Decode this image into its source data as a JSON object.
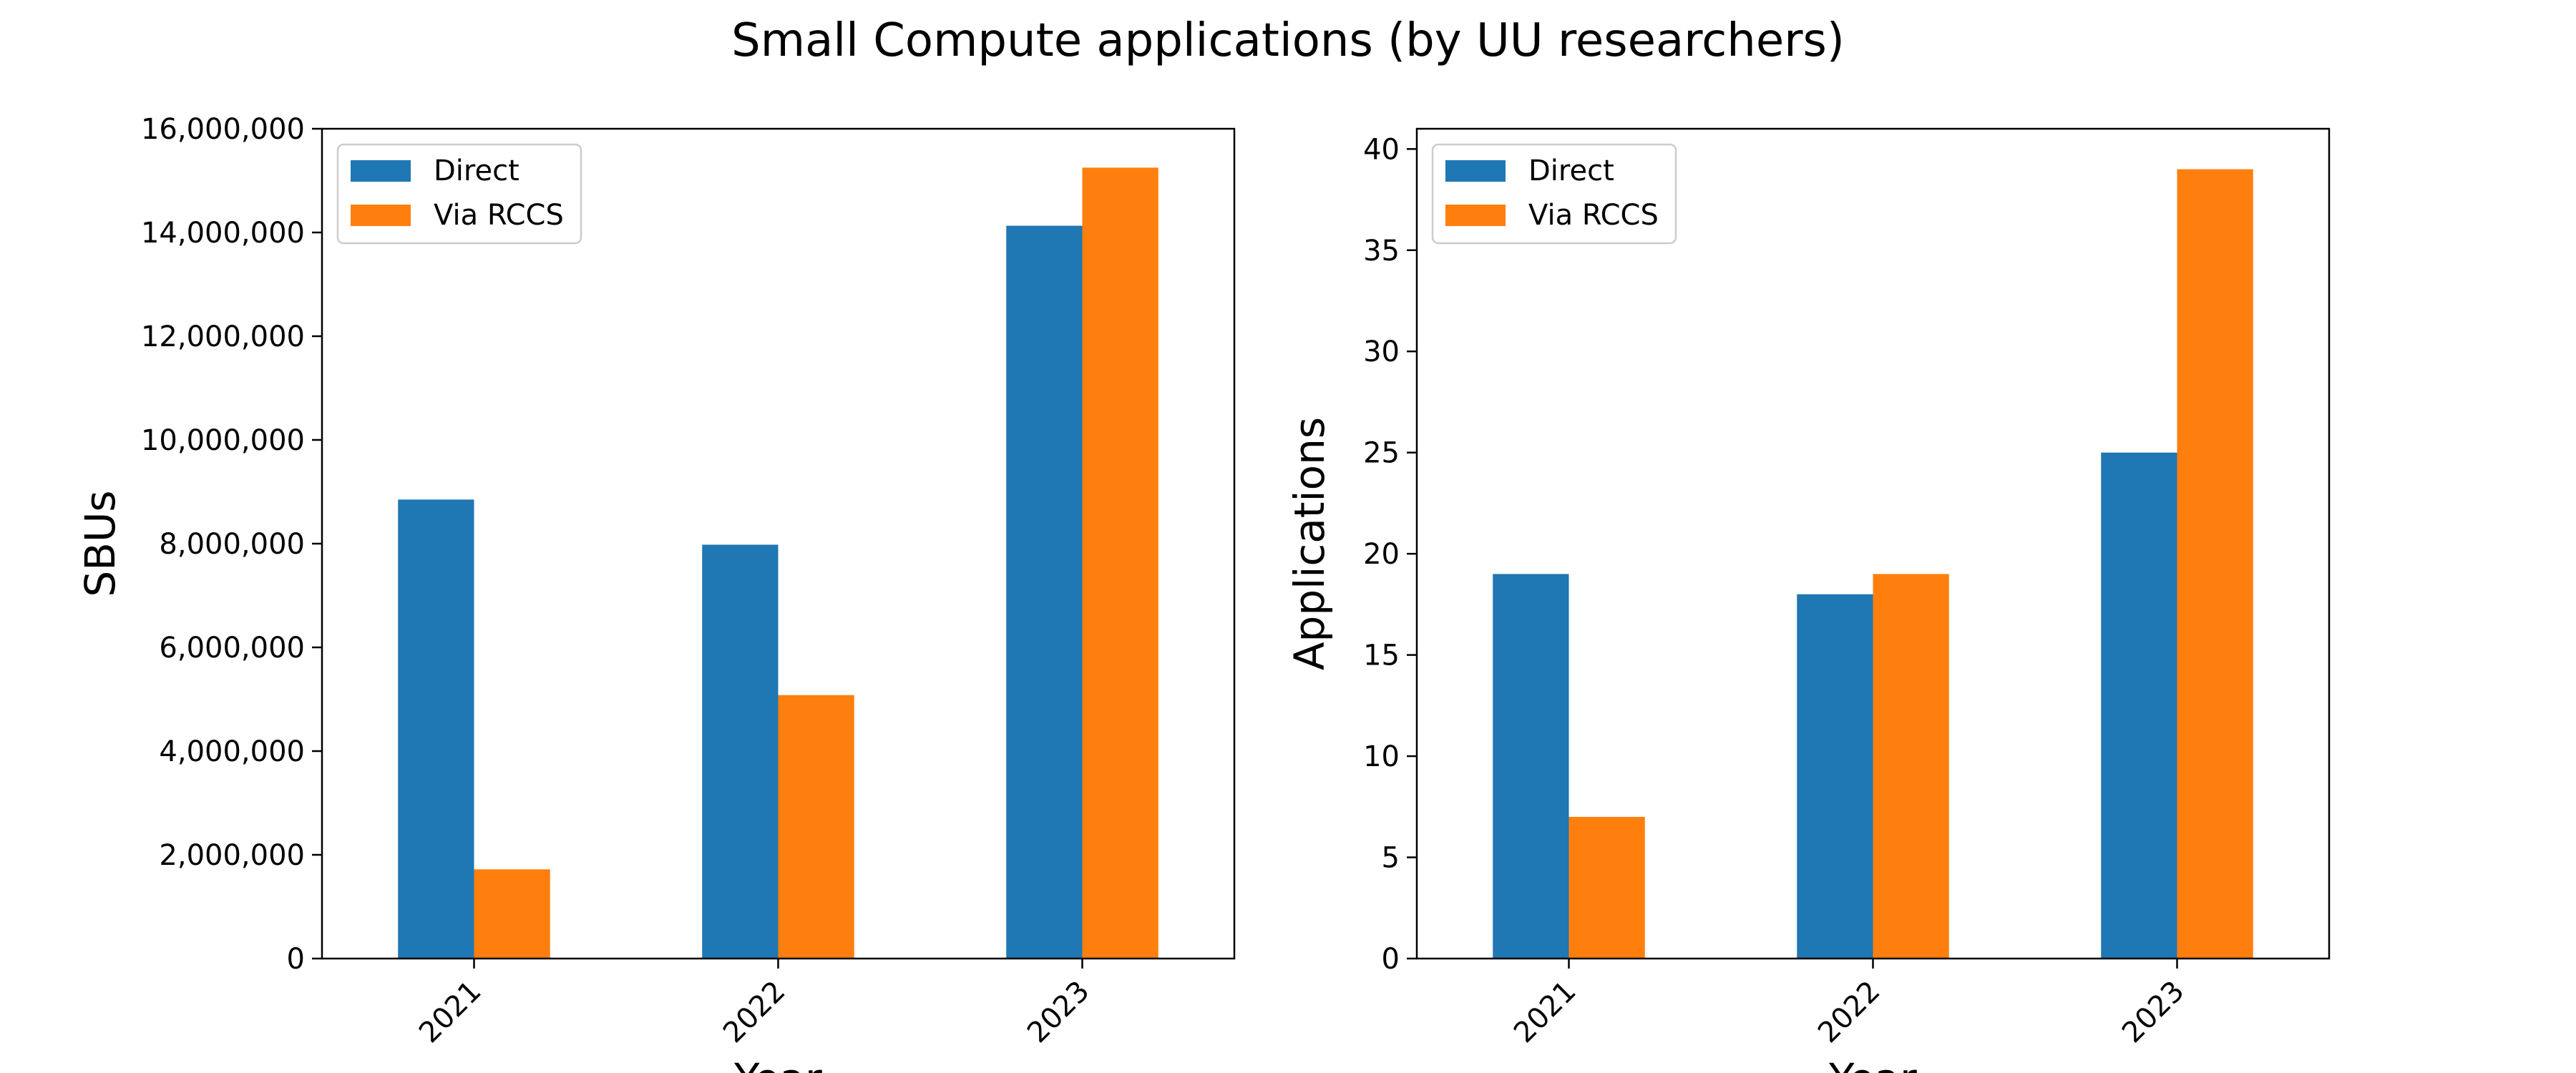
{
  "figure": {
    "title": "Small Compute applications (by UU researchers)"
  },
  "colors": {
    "Direct": "#1f77b4",
    "Via RCCS": "#ff7f0e"
  },
  "chart_data": [
    {
      "type": "bar",
      "categories": [
        "2021",
        "2022",
        "2023"
      ],
      "series": [
        {
          "name": "Direct",
          "values": [
            8850000,
            7980000,
            14130000
          ]
        },
        {
          "name": "Via RCCS",
          "values": [
            1720000,
            5080000,
            15250000
          ]
        }
      ],
      "xlabel": "Year",
      "ylabel": "SBUs",
      "ylim": [
        0,
        16000000
      ],
      "yticks": [
        0,
        2000000,
        4000000,
        6000000,
        8000000,
        10000000,
        12000000,
        14000000,
        16000000
      ],
      "ytick_labels": [
        "0",
        "2,000,000",
        "4,000,000",
        "6,000,000",
        "8,000,000",
        "10,000,000",
        "12,000,000",
        "14,000,000",
        "16,000,000"
      ],
      "legend_position": "upper left",
      "grid": false
    },
    {
      "type": "bar",
      "categories": [
        "2021",
        "2022",
        "2023"
      ],
      "series": [
        {
          "name": "Direct",
          "values": [
            19,
            18,
            25
          ]
        },
        {
          "name": "Via RCCS",
          "values": [
            7,
            19,
            39
          ]
        }
      ],
      "xlabel": "Year",
      "ylabel": "Applications",
      "ylim": [
        0,
        41
      ],
      "yticks": [
        0,
        5,
        10,
        15,
        20,
        25,
        30,
        35,
        40
      ],
      "ytick_labels": [
        "0",
        "5",
        "10",
        "15",
        "20",
        "25",
        "30",
        "35",
        "40"
      ],
      "legend_position": "upper left",
      "grid": false
    }
  ]
}
